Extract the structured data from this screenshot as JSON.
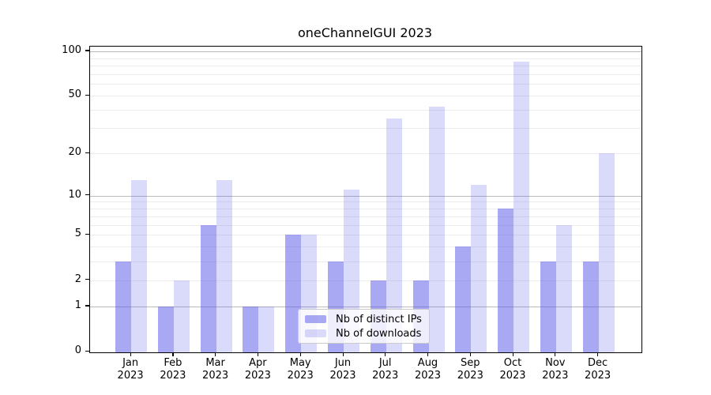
{
  "title": "oneChannelGUI 2023",
  "chart_data": {
    "type": "bar",
    "title": "oneChannelGUI 2023",
    "categories": [
      "Jan",
      "Feb",
      "Mar",
      "Apr",
      "May",
      "Jun",
      "Jul",
      "Aug",
      "Sep",
      "Oct",
      "Nov",
      "Dec"
    ],
    "category_year": "2023",
    "series": [
      {
        "name": "Nb of distinct IPs",
        "color": "#5353e7",
        "opacity": 0.5,
        "values": [
          3,
          1,
          6,
          1,
          5,
          3,
          2,
          2,
          4,
          8,
          3,
          3
        ]
      },
      {
        "name": "Nb of downloads",
        "color": "#5353e7",
        "opacity": 0.215,
        "values": [
          13,
          2,
          13,
          1,
          5,
          11,
          35,
          42,
          12,
          85,
          6,
          20
        ]
      }
    ],
    "yscale": "log1p",
    "yticks": [
      0,
      1,
      2,
      5,
      10,
      20,
      50,
      100
    ],
    "ylim": [
      0,
      100
    ],
    "grid": true,
    "grid_minor_values": [
      2,
      3,
      4,
      5,
      6,
      7,
      8,
      9,
      20,
      30,
      40,
      50,
      60,
      70,
      80,
      90
    ],
    "grid_major_values": [
      1,
      10,
      100
    ],
    "legend_position": "lower center",
    "background": "#ffffff"
  }
}
